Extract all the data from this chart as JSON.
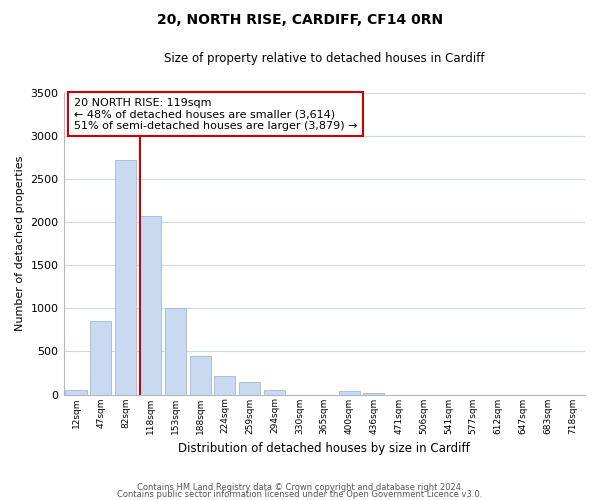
{
  "title": "20, NORTH RISE, CARDIFF, CF14 0RN",
  "subtitle": "Size of property relative to detached houses in Cardiff",
  "xlabel": "Distribution of detached houses by size in Cardiff",
  "ylabel": "Number of detached properties",
  "bar_labels": [
    "12sqm",
    "47sqm",
    "82sqm",
    "118sqm",
    "153sqm",
    "188sqm",
    "224sqm",
    "259sqm",
    "294sqm",
    "330sqm",
    "365sqm",
    "400sqm",
    "436sqm",
    "471sqm",
    "506sqm",
    "541sqm",
    "577sqm",
    "612sqm",
    "647sqm",
    "683sqm",
    "718sqm"
  ],
  "bar_values": [
    55,
    850,
    2720,
    2070,
    1010,
    450,
    215,
    145,
    55,
    0,
    0,
    45,
    20,
    0,
    0,
    0,
    0,
    0,
    0,
    0,
    0
  ],
  "bar_color": "#c9d9f0",
  "bar_edge_color": "#a0b8d8",
  "redline_index": 3,
  "annotation_line1": "20 NORTH RISE: 119sqm",
  "annotation_line2": "← 48% of detached houses are smaller (3,614)",
  "annotation_line3": "51% of semi-detached houses are larger (3,879) →",
  "annotation_box_color": "#ffffff",
  "annotation_box_edge": "#cc0000",
  "ylim": [
    0,
    3500
  ],
  "yticks": [
    0,
    500,
    1000,
    1500,
    2000,
    2500,
    3000,
    3500
  ],
  "footer1": "Contains HM Land Registry data © Crown copyright and database right 2024.",
  "footer2": "Contains public sector information licensed under the Open Government Licence v3.0.",
  "fig_bg": "#ffffff",
  "grid_color": "#d0d8e8"
}
